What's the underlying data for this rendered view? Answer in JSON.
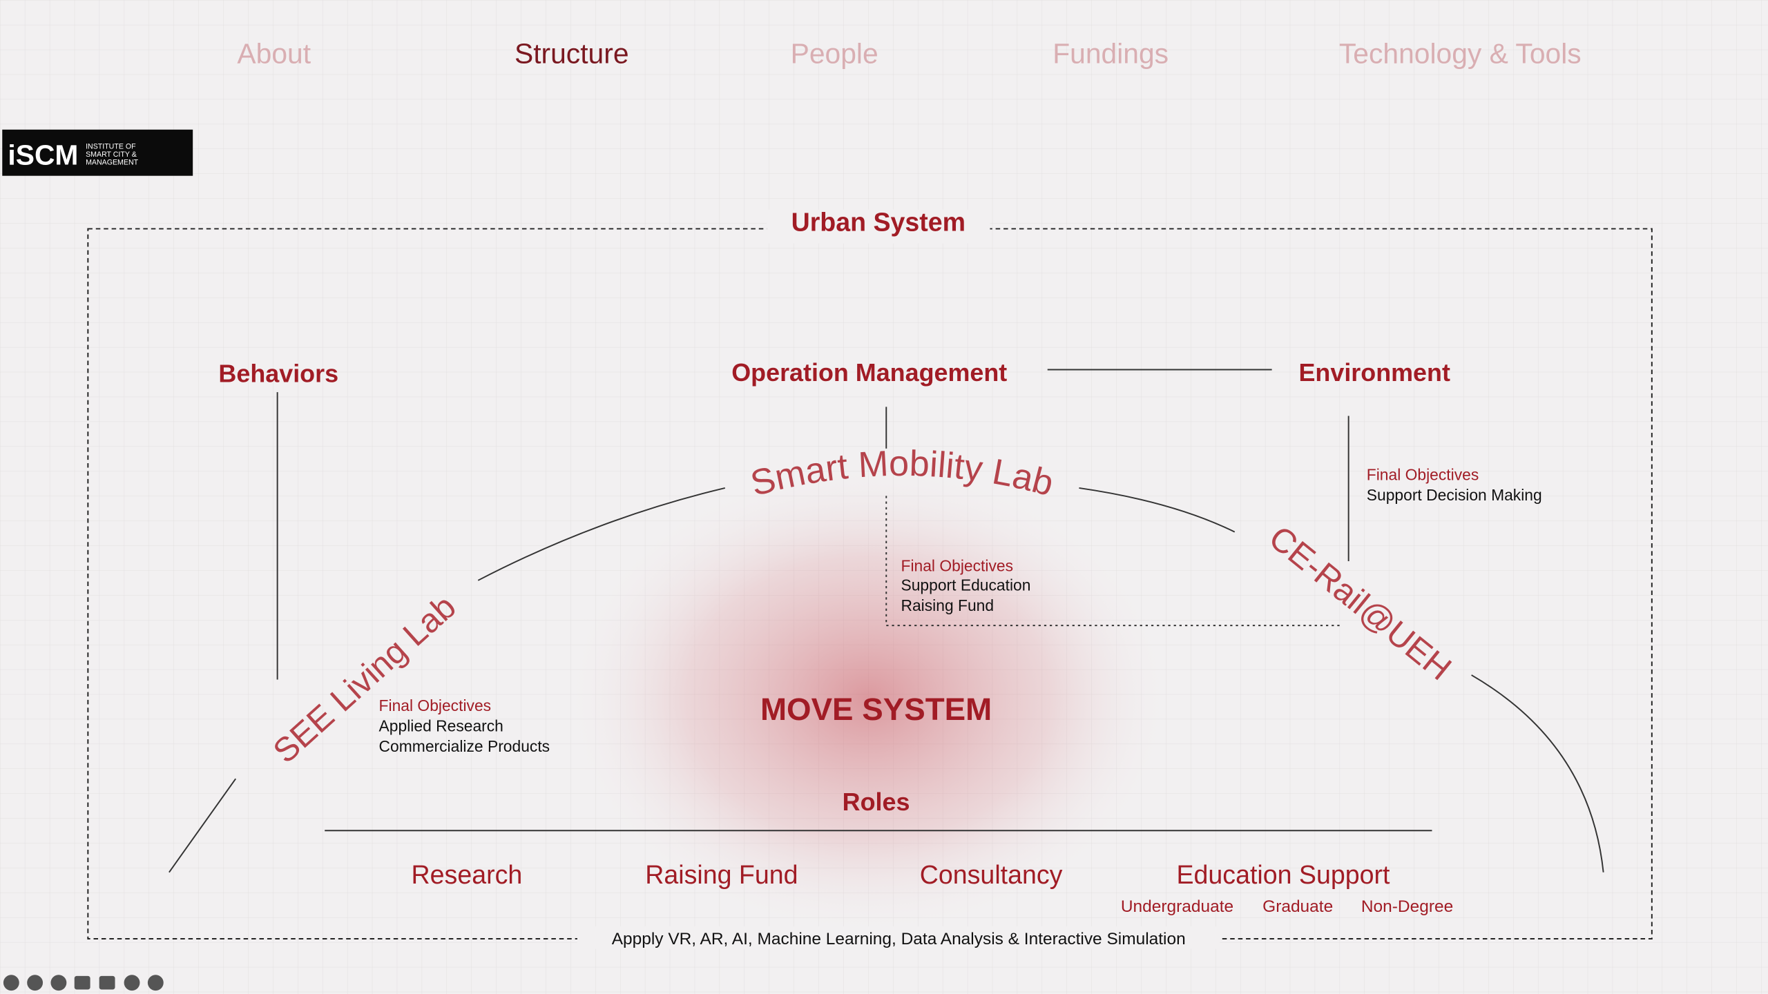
{
  "nav": [
    "About",
    "Structure",
    "People",
    "Fundings",
    "Technology & Tools"
  ],
  "logo": {
    "mark": "iSCM",
    "text": [
      "INSTITUTE OF",
      "SMART CITY &",
      "MANAGEMENT"
    ]
  },
  "frame_title": "Urban System",
  "nodes": {
    "behaviors": "Behaviors",
    "operation": "Operation Management",
    "environment": "Environment"
  },
  "labs": [
    {
      "name": "SEE Living Lab",
      "objectives_title": "Final Objectives",
      "objectives": [
        "Applied Research",
        "Commercialize Products"
      ]
    },
    {
      "name": "Smart Mobility Lab",
      "objectives_title": "Final Objectives",
      "objectives": [
        "Support Education",
        "Raising Fund"
      ]
    },
    {
      "name": "CE-Rail@UEH",
      "objectives_title": "Final Objectives",
      "objectives": [
        "Support Decision Making"
      ]
    }
  ],
  "center": "MOVE SYSTEM",
  "roles": {
    "title": "Roles",
    "items": [
      "Research",
      "Raising Fund",
      "Consultancy",
      "Education Support"
    ],
    "education_levels": [
      "Undergraduate",
      "Graduate",
      "Non-Degree"
    ]
  },
  "footer": "Appply VR, AR, AI, Machine Learning, Data Analysis & Interactive Simulation"
}
